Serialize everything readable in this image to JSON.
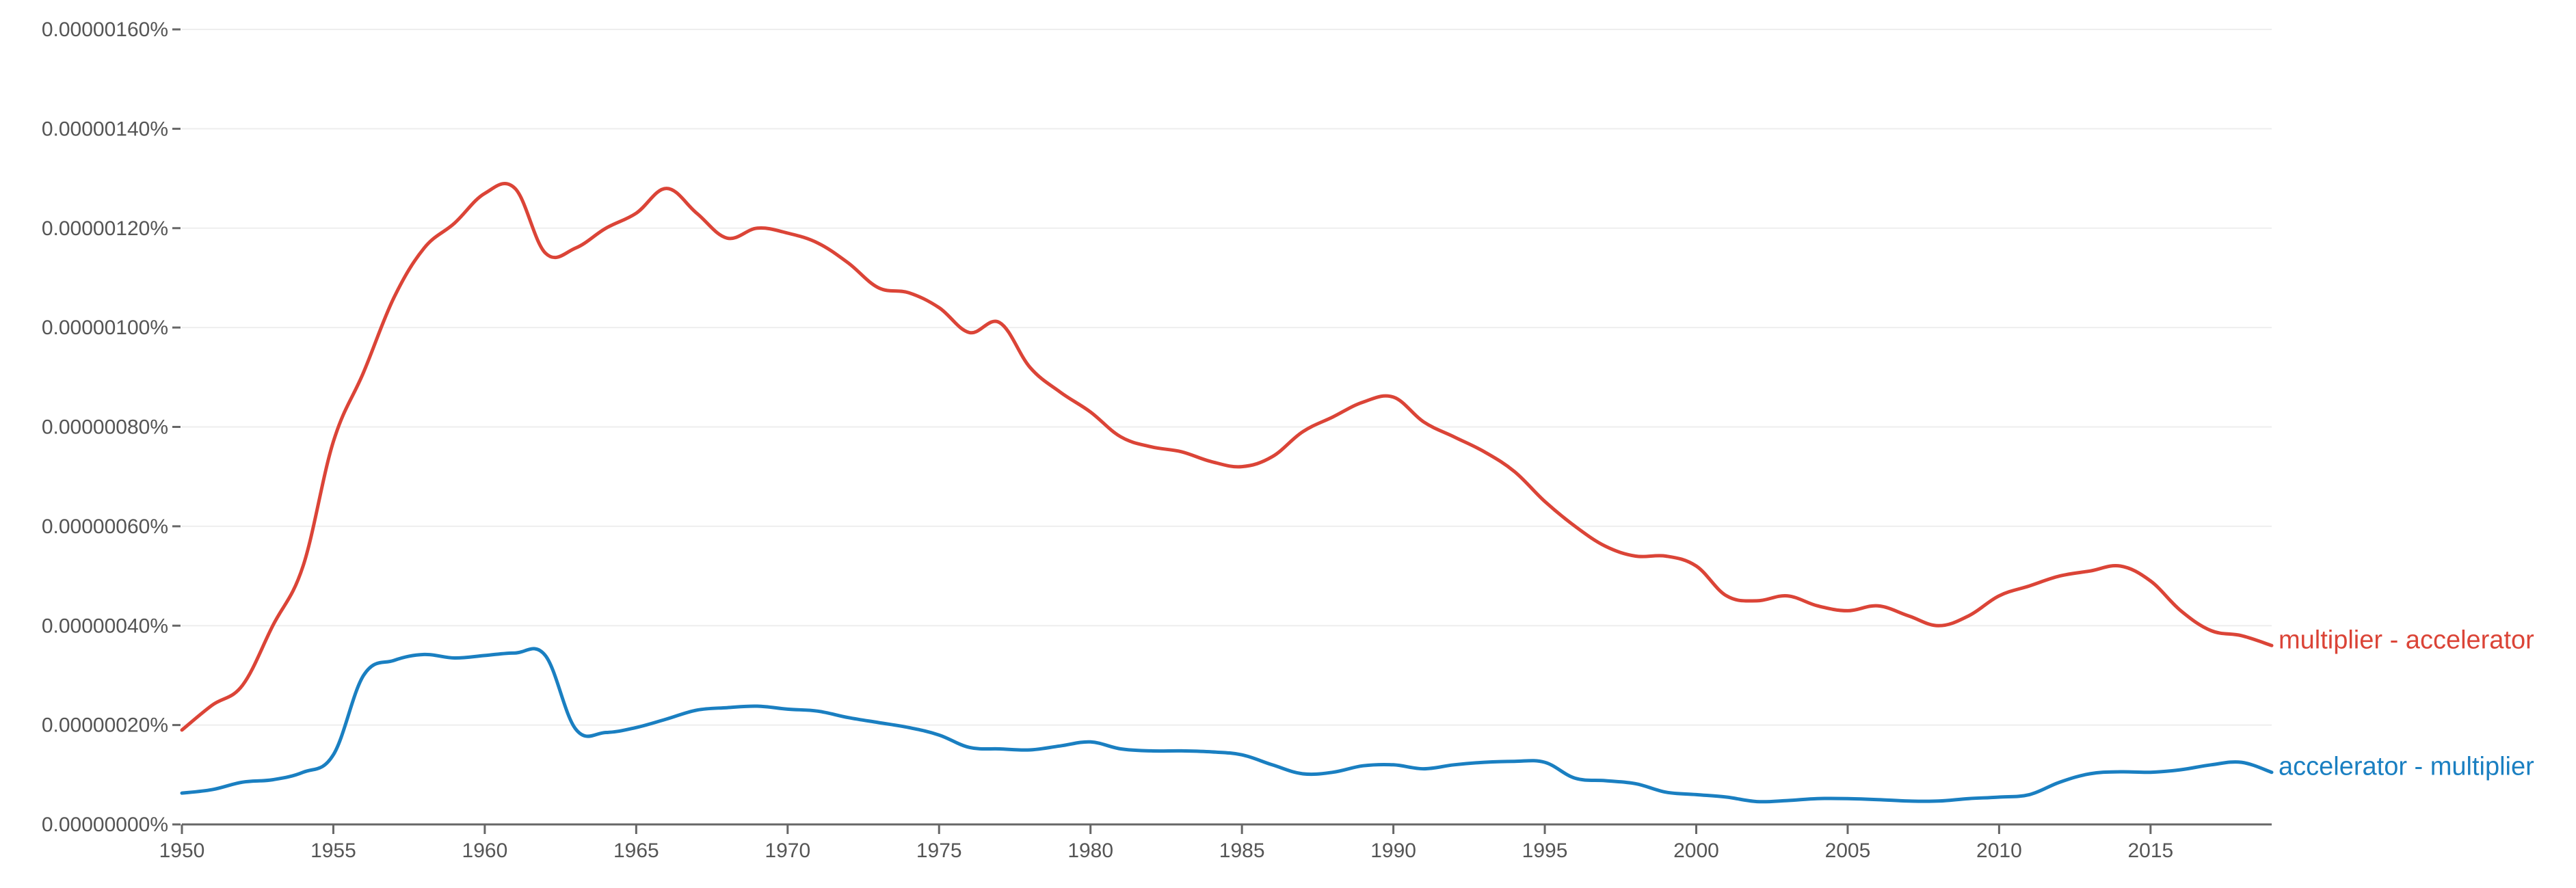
{
  "chart_data": {
    "type": "line",
    "title": "",
    "xlabel": "",
    "ylabel": "",
    "xlim": [
      1950,
      2019
    ],
    "ylim": [
      0,
      1.6e-06
    ],
    "grid": true,
    "y_ticks": [
      {
        "value": 0.0,
        "label": "0.00000000%"
      },
      {
        "value": 2e-07,
        "label": "0.00000020%"
      },
      {
        "value": 4e-07,
        "label": "0.00000040%"
      },
      {
        "value": 6e-07,
        "label": "0.00000060%"
      },
      {
        "value": 8e-07,
        "label": "0.00000080%"
      },
      {
        "value": 1e-06,
        "label": "0.00000100%"
      },
      {
        "value": 1.2e-06,
        "label": "0.00000120%"
      },
      {
        "value": 1.4e-06,
        "label": "0.00000140%"
      },
      {
        "value": 1.6e-06,
        "label": "0.00000160%"
      }
    ],
    "x_ticks": [
      {
        "value": 1950,
        "label": "1950"
      },
      {
        "value": 1955,
        "label": "1955"
      },
      {
        "value": 1960,
        "label": "1960"
      },
      {
        "value": 1965,
        "label": "1965"
      },
      {
        "value": 1970,
        "label": "1970"
      },
      {
        "value": 1975,
        "label": "1975"
      },
      {
        "value": 1980,
        "label": "1980"
      },
      {
        "value": 1985,
        "label": "1985"
      },
      {
        "value": 1990,
        "label": "1990"
      },
      {
        "value": 1995,
        "label": "1995"
      },
      {
        "value": 2000,
        "label": "2000"
      },
      {
        "value": 2005,
        "label": "2005"
      },
      {
        "value": 2010,
        "label": "2010"
      },
      {
        "value": 2015,
        "label": "2015"
      }
    ],
    "series": [
      {
        "name": "multiplier - accelerator",
        "color": "#db4437",
        "x": [
          1950,
          1951,
          1952,
          1953,
          1954,
          1955,
          1956,
          1957,
          1958,
          1959,
          1960,
          1961,
          1962,
          1963,
          1964,
          1965,
          1966,
          1967,
          1968,
          1969,
          1970,
          1971,
          1972,
          1973,
          1974,
          1975,
          1976,
          1977,
          1978,
          1979,
          1980,
          1981,
          1982,
          1983,
          1984,
          1985,
          1986,
          1987,
          1988,
          1989,
          1990,
          1991,
          1992,
          1993,
          1994,
          1995,
          1996,
          1997,
          1998,
          1999,
          2000,
          2001,
          2002,
          2003,
          2004,
          2005,
          2006,
          2007,
          2008,
          2009,
          2010,
          2011,
          2012,
          2013,
          2014,
          2015,
          2016,
          2017,
          2018,
          2019
        ],
        "values": [
          1.9e-07,
          2.4e-07,
          2.8e-07,
          4e-07,
          5.2e-07,
          7.7e-07,
          9.1e-07,
          1.06e-06,
          1.16e-06,
          1.21e-06,
          1.27e-06,
          1.28e-06,
          1.15e-06,
          1.16e-06,
          1.2e-06,
          1.23e-06,
          1.28e-06,
          1.23e-06,
          1.18e-06,
          1.2e-06,
          1.19e-06,
          1.17e-06,
          1.13e-06,
          1.08e-06,
          1.07e-06,
          1.04e-06,
          9.9e-07,
          1.01e-06,
          9.2e-07,
          8.7e-07,
          8.3e-07,
          7.8e-07,
          7.6e-07,
          7.5e-07,
          7.3e-07,
          7.2e-07,
          7.4e-07,
          7.9e-07,
          8.2e-07,
          8.5e-07,
          8.6e-07,
          8.1e-07,
          7.8e-07,
          7.5e-07,
          7.1e-07,
          6.5e-07,
          6e-07,
          5.6e-07,
          5.4e-07,
          5.4e-07,
          5.2e-07,
          4.6e-07,
          4.5e-07,
          4.6e-07,
          4.4e-07,
          4.3e-07,
          4.4e-07,
          4.2e-07,
          4e-07,
          4.2e-07,
          4.6e-07,
          4.8e-07,
          5e-07,
          5.1e-07,
          5.2e-07,
          4.9e-07,
          4.3e-07,
          3.9e-07,
          3.8e-07,
          3.6e-07
        ]
      },
      {
        "name": "accelerator - multiplier",
        "color": "#1a7fc1",
        "x": [
          1950,
          1951,
          1952,
          1953,
          1954,
          1955,
          1956,
          1957,
          1958,
          1959,
          1960,
          1961,
          1962,
          1963,
          1964,
          1965,
          1966,
          1967,
          1968,
          1969,
          1970,
          1971,
          1972,
          1973,
          1974,
          1975,
          1976,
          1977,
          1978,
          1979,
          1980,
          1981,
          1982,
          1983,
          1984,
          1985,
          1986,
          1987,
          1988,
          1989,
          1990,
          1991,
          1992,
          1993,
          1994,
          1995,
          1996,
          1997,
          1998,
          1999,
          2000,
          2001,
          2002,
          2003,
          2004,
          2005,
          2006,
          2007,
          2008,
          2009,
          2010,
          2011,
          2012,
          2013,
          2014,
          2015,
          2016,
          2017,
          2018,
          2019
        ],
        "values": [
          6.3e-08,
          7e-08,
          8.5e-08,
          9e-08,
          1.05e-07,
          1.4e-07,
          3e-07,
          3.3e-07,
          3.42e-07,
          3.35e-07,
          3.4e-07,
          3.45e-07,
          3.4e-07,
          1.92e-07,
          1.85e-07,
          1.95e-07,
          2.12e-07,
          2.3e-07,
          2.35e-07,
          2.38e-07,
          2.32e-07,
          2.28e-07,
          2.15e-07,
          2.05e-07,
          1.95e-07,
          1.8e-07,
          1.55e-07,
          1.52e-07,
          1.5e-07,
          1.58e-07,
          1.66e-07,
          1.52e-07,
          1.48e-07,
          1.48e-07,
          1.46e-07,
          1.4e-07,
          1.2e-07,
          1.02e-07,
          1.05e-07,
          1.18e-07,
          1.2e-07,
          1.12e-07,
          1.2e-07,
          1.25e-07,
          1.27e-07,
          1.25e-07,
          9.3e-08,
          8.8e-08,
          8.2e-08,
          6.5e-08,
          6e-08,
          5.5e-08,
          4.6e-08,
          4.8e-08,
          5.2e-08,
          5.2e-08,
          5e-08,
          4.7e-08,
          4.7e-08,
          5.2e-08,
          5.5e-08,
          6e-08,
          8.5e-08,
          1.02e-07,
          1.06e-07,
          1.05e-07,
          1.1e-07,
          1.2e-07,
          1.25e-07,
          1.05e-07
        ]
      }
    ]
  }
}
